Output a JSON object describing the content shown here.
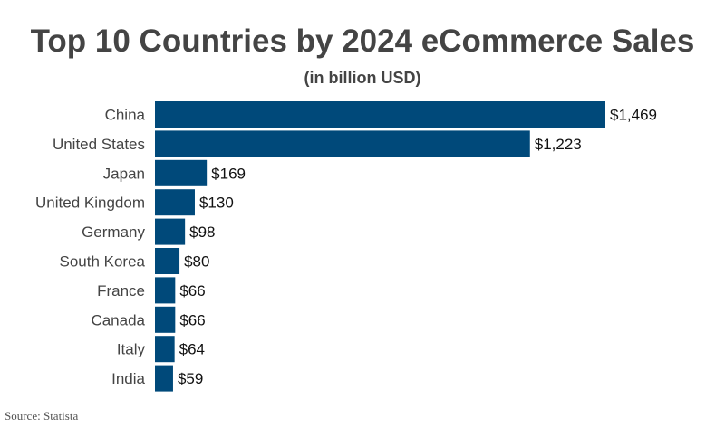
{
  "chart_data": {
    "type": "bar",
    "orientation": "horizontal",
    "title": "Top 10 Countries by 2024 eCommerce Sales",
    "subtitle": "(in billion USD)",
    "categories": [
      "China",
      "United States",
      "Japan",
      "United Kingdom",
      "Germany",
      "South Korea",
      "France",
      "Canada",
      "Italy",
      "India"
    ],
    "values": [
      1469,
      1223,
      169,
      130,
      98,
      80,
      66,
      66,
      64,
      59
    ],
    "data_labels": [
      "$1,469",
      "$1,223",
      "$169",
      "$130",
      "$98",
      "$80",
      "$66",
      "$66",
      "$64",
      "$59"
    ],
    "xlim": [
      0,
      1469
    ],
    "grid": false,
    "legend": "none",
    "bar_color": "#00497a"
  },
  "source": "Source: Statista"
}
